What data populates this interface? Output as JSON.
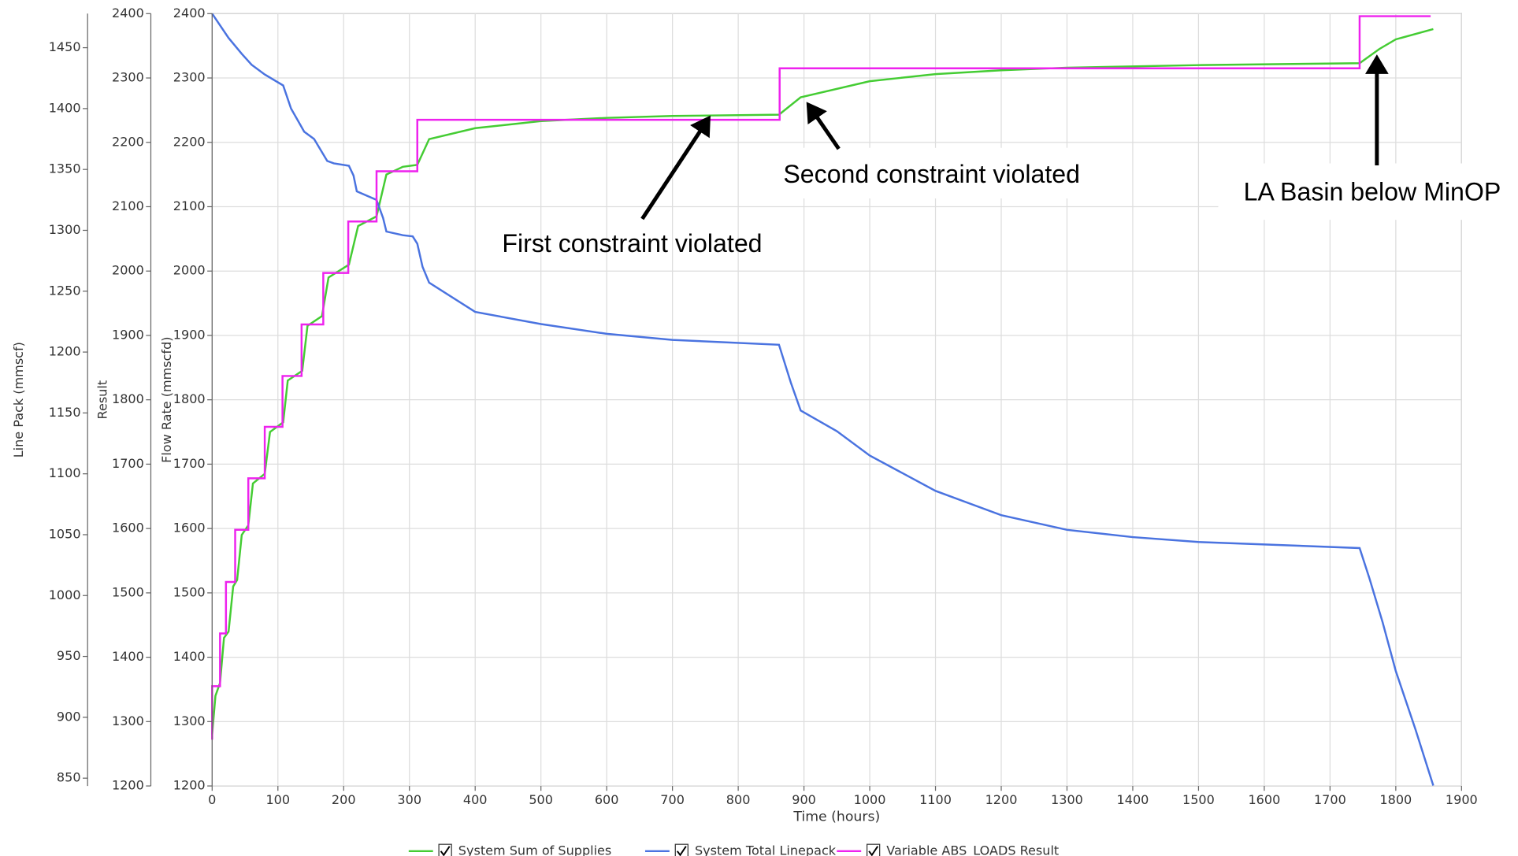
{
  "chart_data": {
    "type": "line",
    "x_label": "Time (hours)",
    "y_label": "Flow Rate (mmscfd)",
    "y2_label": "Result",
    "y3_label": "Line Pack (mmscf)",
    "xlim": [
      0,
      1900
    ],
    "xticks": [
      0,
      100,
      200,
      300,
      400,
      500,
      600,
      700,
      800,
      900,
      1000,
      1100,
      1200,
      1300,
      1400,
      1500,
      1600,
      1700,
      1800,
      1900
    ],
    "ylim": [
      1200,
      2400
    ],
    "yticks": [
      1200,
      1300,
      1400,
      1500,
      1600,
      1700,
      1800,
      1900,
      2000,
      2100,
      2200,
      2300,
      2400
    ],
    "y2lim": [
      1200,
      2400
    ],
    "y2ticks": [
      1200,
      1300,
      1400,
      1500,
      1600,
      1700,
      1800,
      1900,
      2000,
      2100,
      2200,
      2300,
      2400
    ],
    "y3lim": [
      843.6,
      1478
    ],
    "y3ticks": [
      850,
      900,
      950,
      1000,
      1050,
      1100,
      1150,
      1200,
      1250,
      1300,
      1350,
      1400,
      1450
    ],
    "grid": true,
    "series": [
      {
        "name": "System Sum of Supplies",
        "color": "#44cc33",
        "axis": "y",
        "x": [
          0,
          5,
          12,
          18,
          25,
          32,
          38,
          45,
          55,
          62,
          80,
          88,
          108,
          115,
          137,
          145,
          167,
          177,
          208,
          222,
          250,
          265,
          290,
          312,
          330,
          400,
          500,
          600,
          700,
          862,
          895,
          1000,
          1100,
          1200,
          1300,
          1500,
          1745,
          1775,
          1800,
          1857
        ],
        "values": [
          1280,
          1340,
          1360,
          1430,
          1440,
          1510,
          1520,
          1590,
          1605,
          1670,
          1685,
          1750,
          1765,
          1830,
          1845,
          1915,
          1930,
          1990,
          2010,
          2070,
          2085,
          2150,
          2162,
          2165,
          2205,
          2222,
          2233,
          2238,
          2241,
          2243,
          2270,
          2295,
          2306,
          2312,
          2316,
          2320,
          2323,
          2345,
          2360,
          2376
        ]
      },
      {
        "name": "System Total Linepack",
        "color": "#4a73e0",
        "axis": "y3",
        "x": [
          0,
          10,
          25,
          45,
          60,
          80,
          108,
          120,
          140,
          155,
          175,
          185,
          208,
          215,
          220,
          250,
          260,
          265,
          290,
          305,
          312,
          320,
          330,
          400,
          500,
          600,
          700,
          862,
          880,
          895,
          950,
          1000,
          1100,
          1200,
          1300,
          1400,
          1500,
          1600,
          1745,
          1760,
          1780,
          1800,
          1830,
          1857
        ],
        "values": [
          1478,
          1470,
          1458,
          1445,
          1436,
          1428,
          1419,
          1400,
          1381,
          1375,
          1357,
          1355,
          1353,
          1345,
          1332,
          1325,
          1310,
          1299,
          1296,
          1295,
          1289,
          1270,
          1257,
          1233,
          1223,
          1215,
          1210,
          1206,
          1175,
          1152,
          1135,
          1115,
          1086,
          1066,
          1054,
          1048,
          1044,
          1042,
          1039,
          1014,
          978,
          938,
          890,
          844
        ]
      },
      {
        "name": "Variable ABS_LOADS Result",
        "color": "#ee22ee",
        "axis": "y2",
        "x": [
          0,
          0,
          12,
          12,
          21,
          21,
          35,
          35,
          55,
          55,
          80,
          80,
          107,
          107,
          136,
          136,
          169,
          169,
          207,
          207,
          250,
          250,
          312,
          312,
          863,
          863,
          1745,
          1745,
          1853
        ],
        "values": [
          1272,
          1355,
          1355,
          1437,
          1437,
          1517,
          1517,
          1598,
          1598,
          1678,
          1678,
          1758,
          1758,
          1837,
          1837,
          1917,
          1917,
          1997,
          1997,
          2077,
          2077,
          2155,
          2155,
          2235,
          2235,
          2315,
          2315,
          2396,
          2396
        ]
      }
    ],
    "annotations": [
      "First constraint violated",
      "Second constraint violated",
      "LA Basin below MinOP"
    ]
  }
}
